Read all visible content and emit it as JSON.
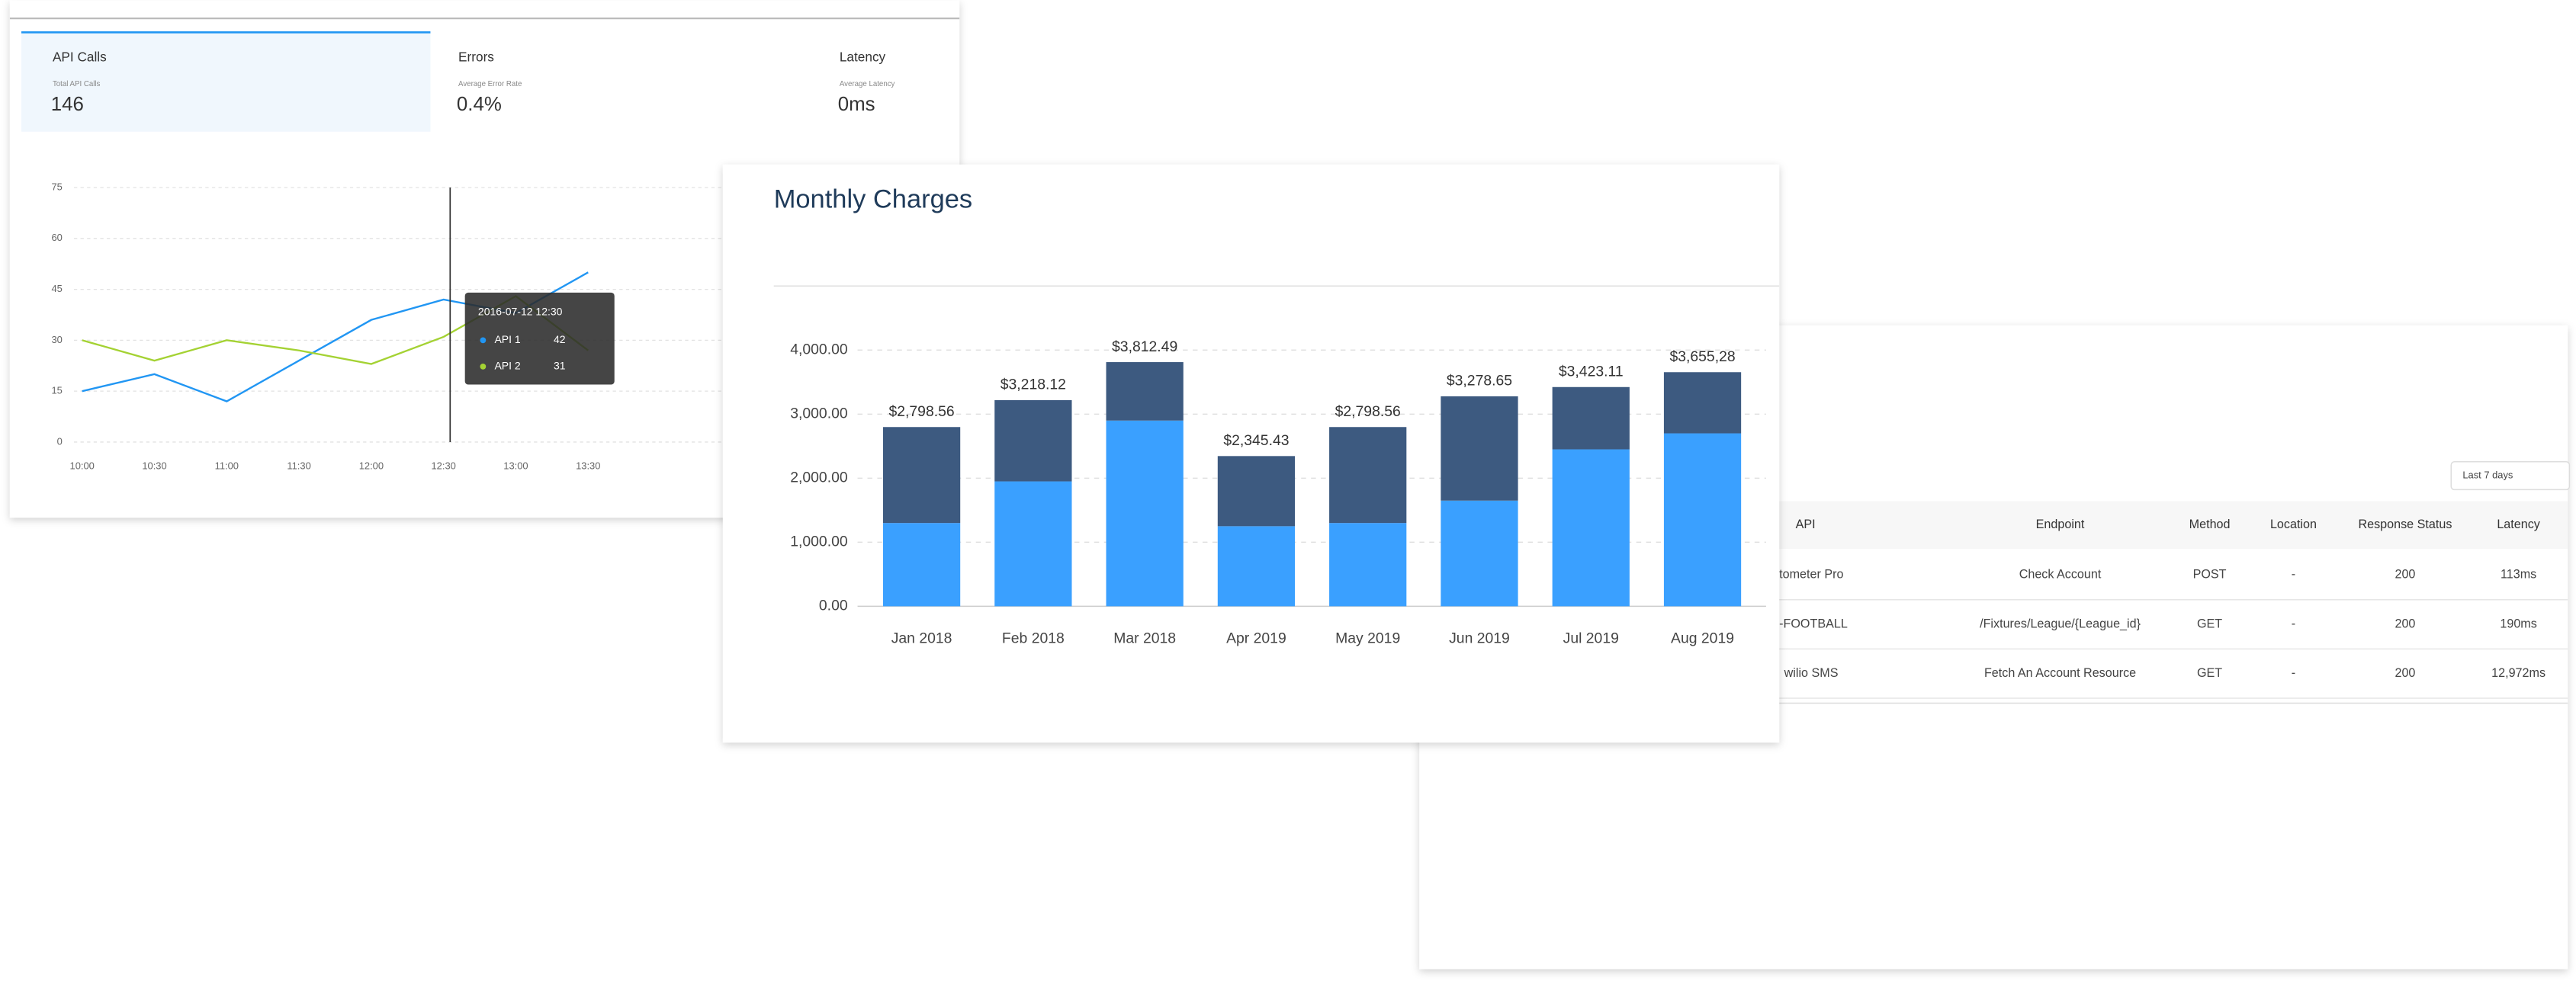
{
  "tabs": [
    {
      "title": "API Calls",
      "label": "Total API Calls",
      "value": "146"
    },
    {
      "title": "Errors",
      "label": "Average Error Rate",
      "value": "0.4%"
    },
    {
      "title": "Latency",
      "label": "Average Latency",
      "value": "0ms"
    }
  ],
  "chart_data": [
    {
      "type": "line",
      "categories": [
        "10:00",
        "10:30",
        "11:00",
        "11:30",
        "12:00",
        "12:30",
        "13:00",
        "13:30"
      ],
      "series": [
        {
          "name": "API 1",
          "color": "#2196f3",
          "values": [
            15,
            20,
            12,
            24,
            36,
            42,
            38,
            50
          ]
        },
        {
          "name": "API 2",
          "color": "#a4d233",
          "values": [
            30,
            24,
            30,
            27,
            23,
            31,
            43,
            27
          ]
        }
      ],
      "ylim": [
        0,
        75
      ],
      "yticks": [
        0,
        15,
        30,
        45,
        60,
        75
      ],
      "grid": true,
      "tooltip": {
        "title": "2016-07-12 12:30"
      }
    },
    {
      "type": "bar",
      "stacked": true,
      "title": "Monthly Charges",
      "categories": [
        "Jan 2018",
        "Feb 2018",
        "Mar 2018",
        "Apr 2019",
        "May 2019",
        "Jun 2019",
        "Jul 2019",
        "Aug 2019"
      ],
      "series": [
        {
          "color": "#3aa0ff",
          "values": [
            1300,
            1950,
            2900,
            1250,
            1300,
            1650,
            2450,
            2700
          ]
        },
        {
          "color": "#3d5a80",
          "values": [
            1498.56,
            1268.12,
            912.49,
            1095.43,
            1498.56,
            1628.65,
            973.11,
            955.28
          ]
        }
      ],
      "totals": {
        "values": [
          2798.56,
          3218.12,
          3812.49,
          2345.43,
          2798.56,
          3278.65,
          3423.11,
          3655.28
        ],
        "value_labels": [
          "$2,798.56",
          "$3,218.12",
          "$3,812.49",
          "$2,345.43",
          "$2,798.56",
          "$3,278.65",
          "$3,423.11",
          "$3,655,28"
        ]
      },
      "ylim": [
        0,
        4000
      ],
      "yticks": [
        {
          "value": 0,
          "label": "0.00"
        },
        {
          "value": 1000,
          "label": "1,000.00"
        },
        {
          "value": 2000,
          "label": "2,000.00"
        },
        {
          "value": 3000,
          "label": "3,000.00"
        },
        {
          "value": 4000,
          "label": "4,000.00"
        }
      ],
      "grid": true
    }
  ],
  "table": {
    "filter": "Last 7 days",
    "columns": [
      "API",
      "Endpoint",
      "Method",
      "Location",
      "Response Status",
      "Latency"
    ],
    "rows": [
      [
        "tometer Pro",
        "Check Account",
        "POST",
        "-",
        "200",
        "113ms"
      ],
      [
        "-FOOTBALL",
        "/Fixtures/League/{League_id}",
        "GET",
        "-",
        "200",
        "190ms"
      ],
      [
        "wilio SMS",
        "Fetch An Account Resource",
        "GET",
        "-",
        "200",
        "12,972ms"
      ]
    ]
  }
}
